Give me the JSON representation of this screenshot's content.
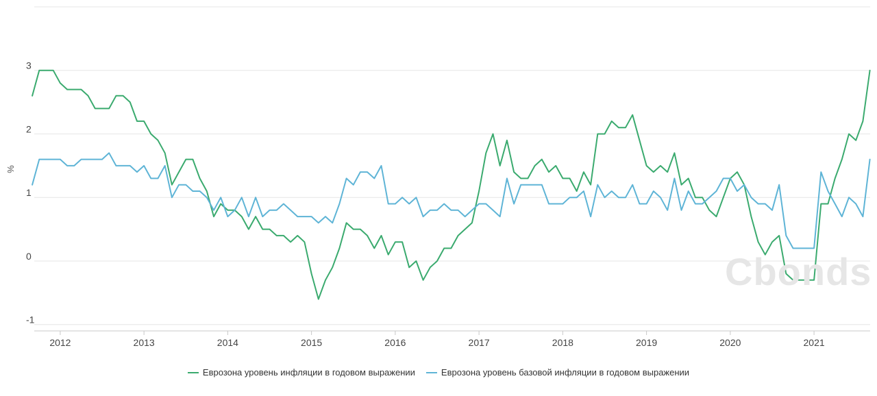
{
  "watermark": "Cbonds",
  "chart_data": {
    "type": "line",
    "ylabel": "%",
    "ylim": [
      -1.1,
      4.0
    ],
    "yticks": [
      3,
      2,
      1,
      0,
      -1
    ],
    "xlim": [
      2011.69,
      2021.67
    ],
    "xticks": [
      2012,
      2013,
      2014,
      2015,
      2016,
      2017,
      2018,
      2019,
      2020,
      2021
    ],
    "grid": "horizontal",
    "legend_position": "bottom",
    "series": [
      {
        "name": "Еврозона уровень инфляции в годовом выражении",
        "color": "#3aaa6e",
        "start": "2011-09",
        "values": [
          2.6,
          3.0,
          3.0,
          3.0,
          2.8,
          2.7,
          2.7,
          2.7,
          2.6,
          2.4,
          2.4,
          2.4,
          2.6,
          2.6,
          2.5,
          2.2,
          2.2,
          2.0,
          1.9,
          1.7,
          1.2,
          1.4,
          1.6,
          1.6,
          1.3,
          1.1,
          0.7,
          0.9,
          0.8,
          0.8,
          0.7,
          0.5,
          0.7,
          0.5,
          0.5,
          0.4,
          0.4,
          0.3,
          0.4,
          0.3,
          -0.2,
          -0.6,
          -0.3,
          -0.1,
          0.2,
          0.6,
          0.5,
          0.5,
          0.4,
          0.2,
          0.4,
          0.1,
          0.3,
          0.3,
          -0.1,
          0.0,
          -0.3,
          -0.1,
          0.0,
          0.2,
          0.2,
          0.4,
          0.5,
          0.6,
          1.1,
          1.7,
          2.0,
          1.5,
          1.9,
          1.4,
          1.3,
          1.3,
          1.5,
          1.6,
          1.4,
          1.5,
          1.3,
          1.3,
          1.1,
          1.4,
          1.2,
          2.0,
          2.0,
          2.2,
          2.1,
          2.1,
          2.3,
          1.9,
          1.5,
          1.4,
          1.5,
          1.4,
          1.7,
          1.2,
          1.3,
          1.0,
          1.0,
          0.8,
          0.7,
          1.0,
          1.3,
          1.4,
          1.2,
          0.7,
          0.3,
          0.1,
          0.3,
          0.4,
          -0.2,
          -0.3,
          -0.3,
          -0.3,
          -0.3,
          0.9,
          0.9,
          1.3,
          1.6,
          2.0,
          1.9,
          2.2,
          3.0
        ]
      },
      {
        "name": "Еврозона уровень базовой инфляции в годовом выражении",
        "color": "#5eb4d6",
        "start": "2011-09",
        "values": [
          1.2,
          1.6,
          1.6,
          1.6,
          1.6,
          1.5,
          1.5,
          1.6,
          1.6,
          1.6,
          1.6,
          1.7,
          1.5,
          1.5,
          1.5,
          1.4,
          1.5,
          1.3,
          1.3,
          1.5,
          1.0,
          1.2,
          1.2,
          1.1,
          1.1,
          1.0,
          0.8,
          1.0,
          0.7,
          0.8,
          1.0,
          0.7,
          1.0,
          0.7,
          0.8,
          0.8,
          0.9,
          0.8,
          0.7,
          0.7,
          0.7,
          0.6,
          0.7,
          0.6,
          0.9,
          1.3,
          1.2,
          1.4,
          1.4,
          1.3,
          1.5,
          0.9,
          0.9,
          1.0,
          0.9,
          1.0,
          0.7,
          0.8,
          0.8,
          0.9,
          0.8,
          0.8,
          0.7,
          0.8,
          0.9,
          0.9,
          0.8,
          0.7,
          1.3,
          0.9,
          1.2,
          1.2,
          1.2,
          1.2,
          0.9,
          0.9,
          0.9,
          1.0,
          1.0,
          1.1,
          0.7,
          1.2,
          1.0,
          1.1,
          1.0,
          1.0,
          1.2,
          0.9,
          0.9,
          1.1,
          1.0,
          0.8,
          1.3,
          0.8,
          1.1,
          0.9,
          0.9,
          1.0,
          1.1,
          1.3,
          1.3,
          1.1,
          1.2,
          1.0,
          0.9,
          0.9,
          0.8,
          1.2,
          0.4,
          0.2,
          0.2,
          0.2,
          0.2,
          1.4,
          1.1,
          0.9,
          0.7,
          1.0,
          0.9,
          0.7,
          1.6
        ]
      }
    ]
  }
}
